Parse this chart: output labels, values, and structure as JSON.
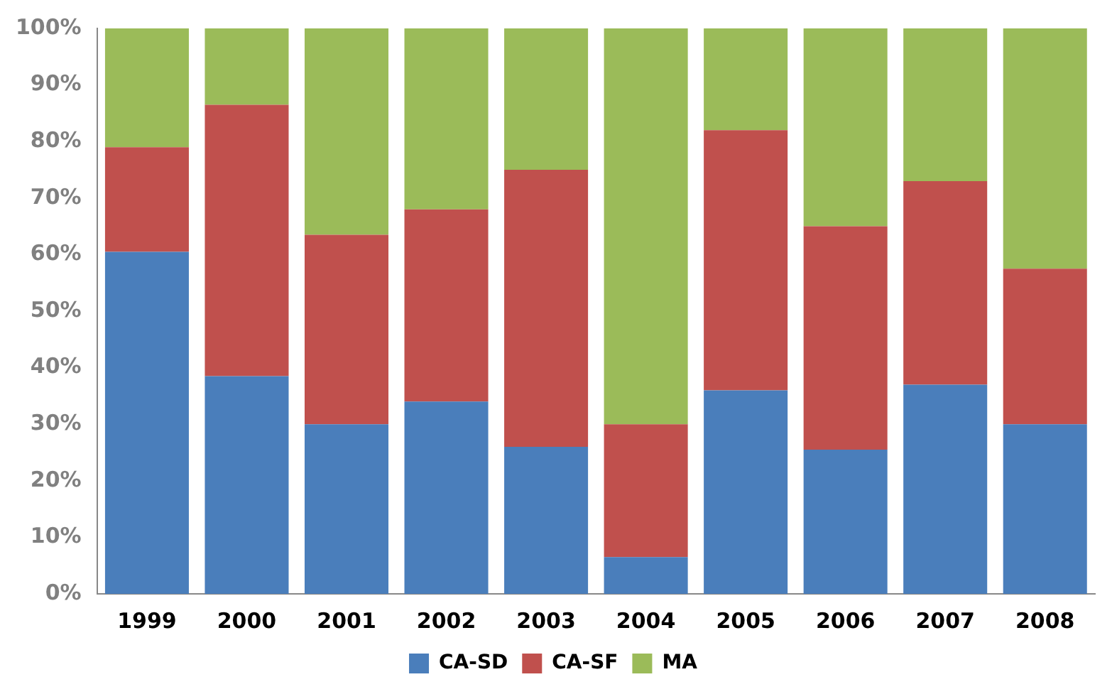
{
  "chart_data": {
    "type": "bar",
    "stacked": true,
    "categories": [
      "1999",
      "2000",
      "2001",
      "2002",
      "2003",
      "2004",
      "2005",
      "2006",
      "2007",
      "2008"
    ],
    "series": [
      {
        "name": "CA-SD",
        "color": "#4a7ebb",
        "values": [
          60.5,
          38.5,
          30,
          34,
          26,
          6.5,
          36,
          25.5,
          37,
          30
        ]
      },
      {
        "name": "CA-SF",
        "color": "#c0504d",
        "values": [
          18.5,
          48,
          33.5,
          34,
          49,
          23.5,
          46,
          39.5,
          36,
          27.5
        ]
      },
      {
        "name": "MA",
        "color": "#9bbb59",
        "values": [
          21,
          13.5,
          36.5,
          32,
          25,
          70,
          18,
          35,
          27,
          42.5
        ]
      }
    ],
    "ylim": [
      0,
      100
    ],
    "yticks": [
      {
        "value": 0,
        "label": "0%"
      },
      {
        "value": 10,
        "label": "10%"
      },
      {
        "value": 20,
        "label": "20%"
      },
      {
        "value": 30,
        "label": "30%"
      },
      {
        "value": 40,
        "label": "40%"
      },
      {
        "value": 50,
        "label": "50%"
      },
      {
        "value": 60,
        "label": "60%"
      },
      {
        "value": 70,
        "label": "70%"
      },
      {
        "value": 80,
        "label": "80%"
      },
      {
        "value": 90,
        "label": "90%"
      },
      {
        "value": 100,
        "label": "100%"
      }
    ],
    "grid": false,
    "legend": "bottom"
  }
}
